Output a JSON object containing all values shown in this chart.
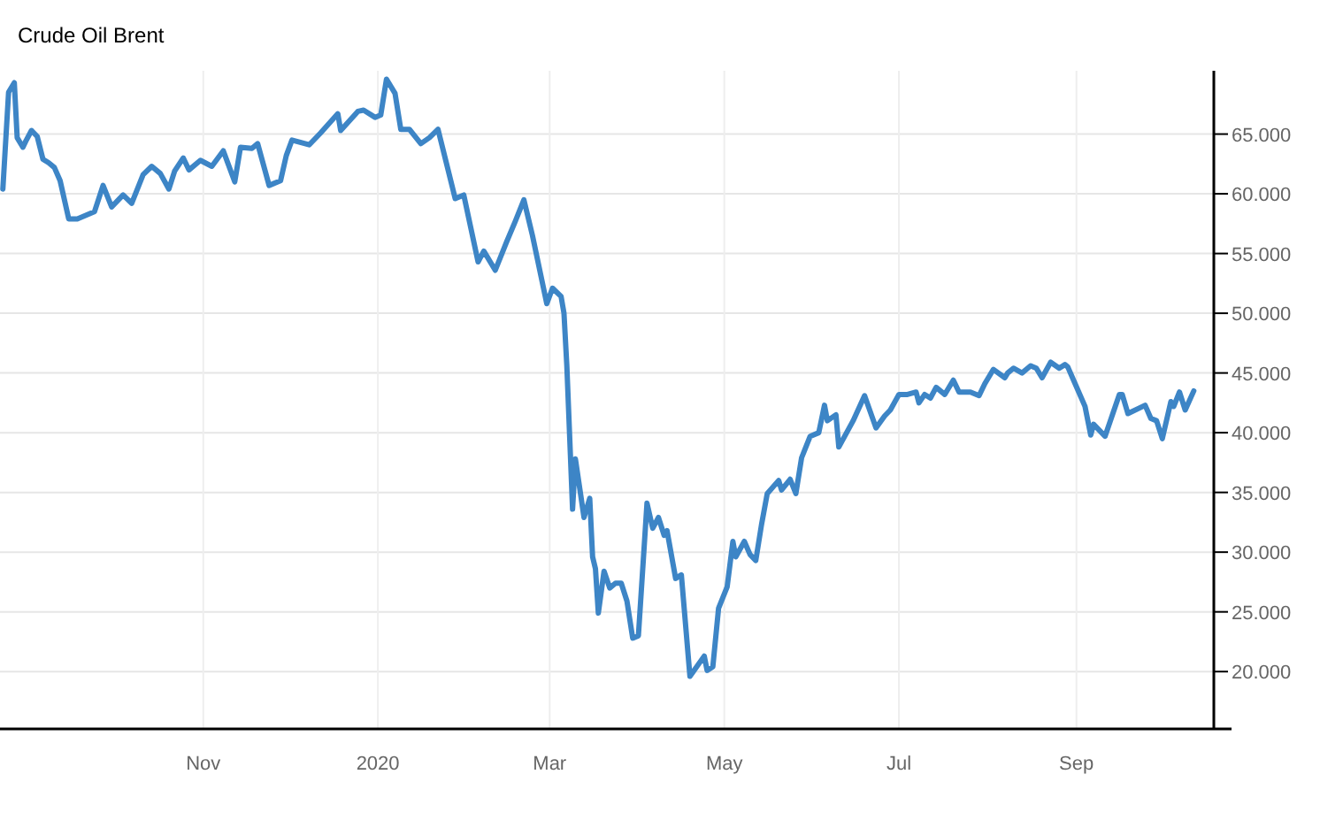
{
  "chart_data": {
    "type": "line",
    "title": "Crude Oil Brent",
    "x": [
      "2019-08-23",
      "2019-08-25",
      "2019-08-27",
      "2019-08-28",
      "2019-08-30",
      "2019-08-31",
      "2019-09-02",
      "2019-09-04",
      "2019-09-06",
      "2019-09-08",
      "2019-09-10",
      "2019-09-12",
      "2019-09-15",
      "2019-09-18",
      "2019-09-24",
      "2019-09-27",
      "2019-09-30",
      "2019-10-04",
      "2019-10-07",
      "2019-10-11",
      "2019-10-14",
      "2019-10-17",
      "2019-10-20",
      "2019-10-22",
      "2019-10-25",
      "2019-10-27",
      "2019-10-31",
      "2019-11-04",
      "2019-11-08",
      "2019-11-12",
      "2019-11-14",
      "2019-11-18",
      "2019-11-20",
      "2019-11-24",
      "2019-11-28",
      "2019-11-30",
      "2019-12-02",
      "2019-12-08",
      "2019-12-12",
      "2019-12-18",
      "2019-12-19",
      "2019-12-25",
      "2019-12-27",
      "2019-12-31",
      "2020-01-02",
      "2020-01-04",
      "2020-01-07",
      "2020-01-09",
      "2020-01-12",
      "2020-01-16",
      "2020-01-19",
      "2020-01-22",
      "2020-01-28",
      "2020-01-31",
      "2020-02-05",
      "2020-02-07",
      "2020-02-11",
      "2020-02-15",
      "2020-02-18",
      "2020-02-21",
      "2020-02-24",
      "2020-02-29",
      "2020-03-02",
      "2020-03-05",
      "2020-03-06",
      "2020-03-07",
      "2020-03-09",
      "2020-03-10",
      "2020-03-13",
      "2020-03-15",
      "2020-03-16",
      "2020-03-17",
      "2020-03-18",
      "2020-03-20",
      "2020-03-22",
      "2020-03-24",
      "2020-03-26",
      "2020-03-28",
      "2020-03-30",
      "2020-04-01",
      "2020-04-04",
      "2020-04-06",
      "2020-04-08",
      "2020-04-10",
      "2020-04-11",
      "2020-04-14",
      "2020-04-16",
      "2020-04-19",
      "2020-04-24",
      "2020-04-25",
      "2020-04-27",
      "2020-04-29",
      "2020-05-02",
      "2020-05-04",
      "2020-05-05",
      "2020-05-08",
      "2020-05-10",
      "2020-05-12",
      "2020-05-14",
      "2020-05-16",
      "2020-05-20",
      "2020-05-21",
      "2020-05-24",
      "2020-05-26",
      "2020-05-28",
      "2020-05-31",
      "2020-06-03",
      "2020-06-05",
      "2020-06-06",
      "2020-06-09",
      "2020-06-10",
      "2020-06-15",
      "2020-06-19",
      "2020-06-23",
      "2020-06-26",
      "2020-06-28",
      "2020-07-01",
      "2020-07-04",
      "2020-07-07",
      "2020-07-08",
      "2020-07-10",
      "2020-07-12",
      "2020-07-14",
      "2020-07-17",
      "2020-07-20",
      "2020-07-22",
      "2020-07-26",
      "2020-07-29",
      "2020-07-31",
      "2020-08-03",
      "2020-08-07",
      "2020-08-08",
      "2020-08-10",
      "2020-08-13",
      "2020-08-16",
      "2020-08-18",
      "2020-08-20",
      "2020-08-23",
      "2020-08-26",
      "2020-08-28",
      "2020-08-29",
      "2020-08-31",
      "2020-09-04",
      "2020-09-06",
      "2020-09-07",
      "2020-09-11",
      "2020-09-16",
      "2020-09-17",
      "2020-09-19",
      "2020-09-25",
      "2020-09-27",
      "2020-09-29",
      "2020-10-01",
      "2020-10-04",
      "2020-10-05",
      "2020-10-07",
      "2020-10-09",
      "2020-10-12"
    ],
    "series": [
      {
        "color": "#3d85c6",
        "values": [
          60.4,
          68.5,
          69.3,
          64.7,
          63.9,
          64.4,
          65.3,
          64.8,
          62.9,
          62.6,
          62.2,
          61.1,
          57.9,
          57.9,
          58.5,
          60.7,
          58.9,
          59.9,
          59.2,
          61.6,
          62.3,
          61.7,
          60.4,
          61.9,
          63.0,
          62.0,
          62.8,
          62.3,
          63.6,
          61.0,
          63.9,
          63.8,
          64.2,
          60.7,
          61.1,
          63.2,
          64.5,
          64.1,
          65.1,
          66.7,
          65.3,
          66.9,
          67.0,
          66.4,
          66.6,
          69.6,
          68.4,
          65.4,
          65.4,
          64.2,
          64.7,
          65.4,
          59.6,
          59.9,
          54.3,
          55.2,
          53.6,
          56.0,
          57.7,
          59.5,
          56.5,
          50.8,
          52.1,
          51.4,
          50.0,
          45.6,
          33.6,
          37.8,
          32.9,
          34.5,
          29.6,
          28.6,
          24.9,
          28.4,
          27.0,
          27.4,
          27.4,
          25.9,
          22.8,
          23.0,
          34.1,
          32.0,
          32.9,
          31.4,
          31.8,
          27.8,
          28.1,
          19.6,
          21.3,
          20.1,
          20.4,
          25.3,
          27.1,
          30.9,
          29.6,
          30.9,
          29.8,
          29.3,
          32.3,
          34.9,
          36.0,
          35.2,
          36.1,
          34.9,
          37.9,
          39.7,
          40.0,
          42.3,
          41.0,
          41.5,
          38.8,
          41.0,
          43.1,
          40.4,
          41.4,
          41.9,
          43.2,
          43.2,
          43.4,
          42.5,
          43.2,
          42.9,
          43.8,
          43.2,
          44.4,
          43.4,
          43.4,
          43.1,
          44.1,
          45.3,
          44.6,
          45.0,
          45.4,
          45.0,
          45.6,
          45.4,
          44.6,
          45.9,
          45.4,
          45.7,
          45.5,
          44.4,
          42.2,
          39.8,
          40.7,
          39.7,
          43.2,
          43.2,
          41.6,
          42.3,
          41.2,
          41.0,
          39.5,
          42.6,
          42.2,
          43.4,
          41.9,
          43.5
        ]
      }
    ],
    "xlim": [
      "2019-08-22",
      "2020-10-19"
    ],
    "xticks": [
      {
        "value": "2019-11-01",
        "label": "Nov"
      },
      {
        "value": "2020-01-01",
        "label": "2020"
      },
      {
        "value": "2020-03-01",
        "label": "Mar"
      },
      {
        "value": "2020-05-01",
        "label": "May"
      },
      {
        "value": "2020-07-01",
        "label": "Jul"
      },
      {
        "value": "2020-09-01",
        "label": "Sep"
      }
    ],
    "ylim": [
      15.2,
      70.3
    ],
    "yticks": [
      {
        "value": 20,
        "label": "20.000"
      },
      {
        "value": 25,
        "label": "25.000"
      },
      {
        "value": 30,
        "label": "30.000"
      },
      {
        "value": 35,
        "label": "35.000"
      },
      {
        "value": 40,
        "label": "40.000"
      },
      {
        "value": 45,
        "label": "45.000"
      },
      {
        "value": 50,
        "label": "50.000"
      },
      {
        "value": 55,
        "label": "55.000"
      },
      {
        "value": 60,
        "label": "60.000"
      },
      {
        "value": 65,
        "label": "65.000"
      }
    ],
    "grid": true,
    "line_style": "solid",
    "marker": "none"
  }
}
